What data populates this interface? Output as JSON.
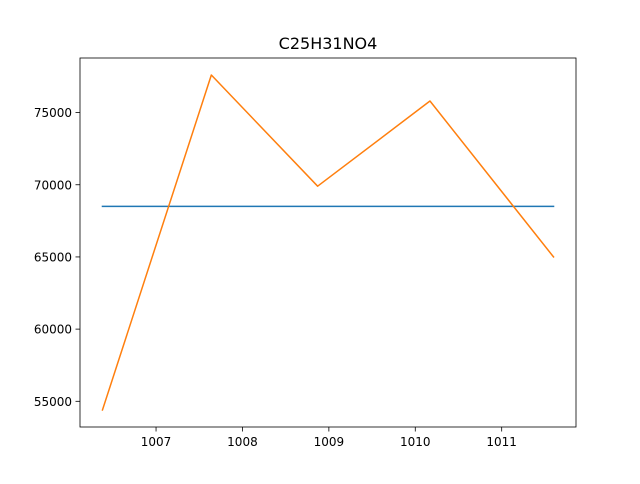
{
  "chart_data": {
    "type": "line",
    "title": "C25H31NO4",
    "xlabel": "",
    "ylabel": "",
    "xlim": [
      1006.12,
      1011.86
    ],
    "ylim": [
      53220,
      78780
    ],
    "x_ticks": [
      1007,
      1008,
      1009,
      1010,
      1011
    ],
    "y_ticks": [
      55000,
      60000,
      65000,
      70000,
      75000
    ],
    "grid": false,
    "legend": "none",
    "series": [
      {
        "color": "#1f77b4",
        "x": [
          1006.38,
          1011.6
        ],
        "y": [
          68500,
          68500
        ]
      },
      {
        "color": "#ff7f0e",
        "x": [
          1006.38,
          1007.64,
          1008.87,
          1010.17,
          1011.6
        ],
        "y": [
          54400,
          77600,
          69900,
          75800,
          65000
        ]
      }
    ]
  }
}
